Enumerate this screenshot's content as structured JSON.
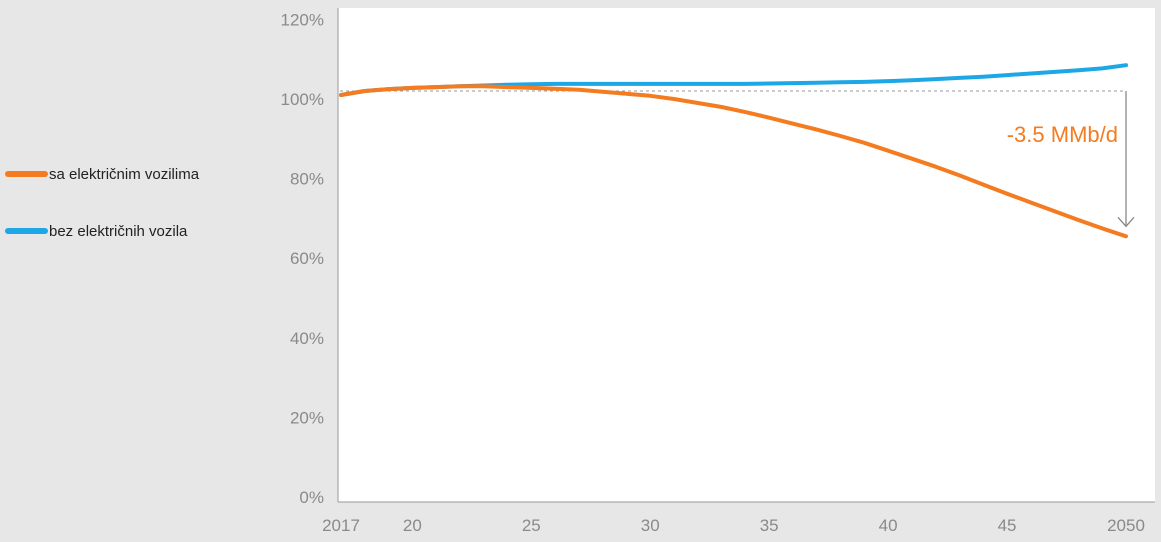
{
  "chart_data": {
    "type": "line",
    "x": [
      2017,
      2018,
      2019,
      2020,
      2021,
      2022,
      2023,
      2024,
      2025,
      2026,
      2027,
      2028,
      2029,
      2030,
      2031,
      2032,
      2033,
      2034,
      2035,
      2036,
      2037,
      2038,
      2039,
      2040,
      2041,
      2042,
      2043,
      2044,
      2045,
      2046,
      2047,
      2048,
      2049,
      2050
    ],
    "x_tick_values": [
      2017,
      2020,
      2025,
      2030,
      2035,
      2040,
      2045,
      2050
    ],
    "x_tick_labels": [
      "2017",
      "20",
      "25",
      "30",
      "35",
      "40",
      "45",
      "2050"
    ],
    "y_ticks": [
      0,
      20,
      40,
      60,
      80,
      100,
      120
    ],
    "y_tick_labels": [
      "0%",
      "20%",
      "40%",
      "60%",
      "80%",
      "100%",
      "120%"
    ],
    "xlim": [
      2017,
      2050
    ],
    "ylim": [
      0,
      122
    ],
    "reference_y": 102,
    "series": [
      {
        "name": "sa električnim vozilima",
        "color": "#f47b20",
        "values": [
          101,
          102,
          102.5,
          102.8,
          103,
          103.2,
          103.2,
          103,
          102.8,
          102.6,
          102.3,
          101.8,
          101.3,
          100.8,
          100,
          99,
          98,
          96.7,
          95.3,
          93.8,
          92.3,
          90.7,
          89,
          87,
          85,
          83,
          80.8,
          78.5,
          76.2,
          74,
          71.8,
          69.6,
          67.5,
          65.5
        ]
      },
      {
        "name": "bez električnih vozila",
        "color": "#1ea7e6",
        "values": [
          101,
          102,
          102.5,
          102.8,
          103,
          103.2,
          103.4,
          103.6,
          103.7,
          103.8,
          103.8,
          103.8,
          103.8,
          103.8,
          103.8,
          103.8,
          103.8,
          103.8,
          103.9,
          104,
          104.1,
          104.2,
          104.3,
          104.5,
          104.7,
          105,
          105.3,
          105.6,
          106,
          106.4,
          106.8,
          107.2,
          107.7,
          108.5
        ]
      }
    ],
    "annotation": {
      "text": "-3.5 MMb/d",
      "x": 2050,
      "y_from": 102,
      "y_to": 68
    }
  }
}
